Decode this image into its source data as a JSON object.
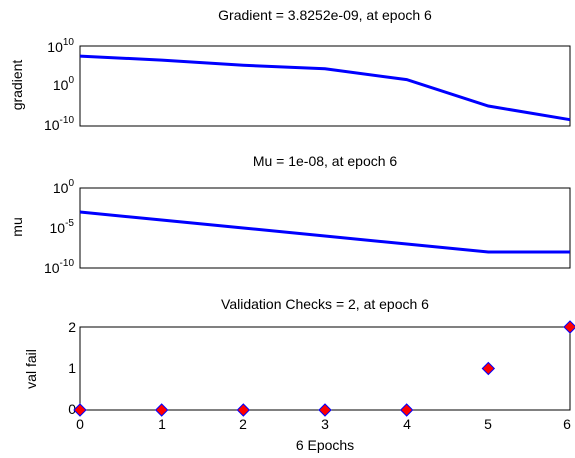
{
  "chart_data": [
    {
      "type": "line",
      "title": "Gradient = 3.8252e-09, at epoch 6",
      "ylabel": "gradient",
      "xlabel": "",
      "yscale": "log",
      "ylim": [
        1e-10,
        10000000000.0
      ],
      "xlim": [
        0,
        6
      ],
      "yticks": [
        {
          "base": "10",
          "exp": "10"
        },
        {
          "base": "10",
          "exp": "0"
        },
        {
          "base": "10",
          "exp": "-10"
        }
      ],
      "x": [
        0,
        1,
        2,
        3,
        4,
        5,
        6
      ],
      "values": [
        30000000,
        3000000,
        150000,
        20000,
        40,
        1e-05,
        3.8252e-09
      ],
      "color": "#0000ff"
    },
    {
      "type": "line",
      "title": "Mu = 1e-08, at epoch 6",
      "ylabel": "mu",
      "xlabel": "",
      "yscale": "log",
      "ylim": [
        1e-10,
        1
      ],
      "xlim": [
        0,
        6
      ],
      "yticks": [
        {
          "base": "10",
          "exp": "0"
        },
        {
          "base": "10",
          "exp": "-5"
        },
        {
          "base": "10",
          "exp": "-10"
        }
      ],
      "x": [
        0,
        1,
        2,
        3,
        4,
        5,
        6
      ],
      "values": [
        0.001,
        0.0001,
        1e-05,
        1e-06,
        1e-07,
        1e-08,
        1e-08
      ],
      "color": "#0000ff"
    },
    {
      "type": "scatter",
      "title": "Validation Checks = 2, at epoch 6",
      "ylabel": "val fail",
      "xlabel": "6 Epochs",
      "yscale": "linear",
      "ylim": [
        0,
        2
      ],
      "xlim": [
        0,
        6
      ],
      "yticklabels": [
        "2",
        "1",
        "0"
      ],
      "xticklabels": [
        "0",
        "1",
        "2",
        "3",
        "4",
        "5",
        "6"
      ],
      "x": [
        0,
        1,
        2,
        3,
        4,
        5,
        6
      ],
      "values": [
        0,
        0,
        0,
        0,
        0,
        1,
        2
      ],
      "marker_fill": "#ff0000",
      "marker_edge": "#0000ff"
    }
  ]
}
